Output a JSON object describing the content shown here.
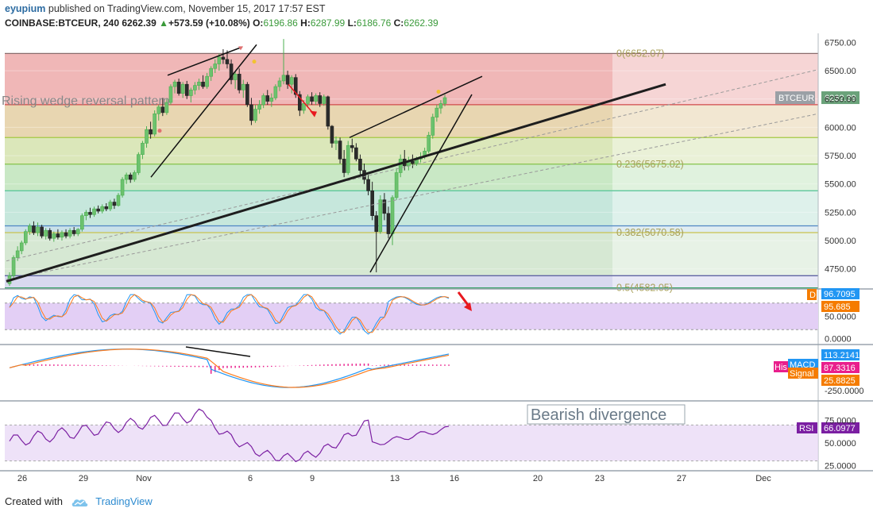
{
  "header": {
    "author": "eyupium",
    "published": "published on TradingView.com, November 15, 2017 17:57 EST",
    "symbol": "COINBASE:BTCEUR, 240",
    "last": "6262.39",
    "change_arrow": "▲",
    "change": "+573.59 (+10.08%)",
    "o_label": "O:",
    "o_value": "6196.86",
    "h_label": "H:",
    "h_value": "6287.99",
    "l_label": "L:",
    "l_value": "6186.76",
    "c_label": "C:",
    "c_value": "6262.39"
  },
  "footer": {
    "created_with": "Created with",
    "brand": "TradingView",
    "brand_icon": "tradingview-cloud-icon"
  },
  "colors": {
    "grid": "#e9eef2",
    "candle_up": "#4caf50",
    "candle_down": "#222222",
    "trend": "#000000",
    "fib_red": "#e05a5a",
    "rsi_zone": "#e8d8f6",
    "macd": "#2196f3",
    "signal": "#ff7b1c",
    "hist": "#e91e8c",
    "rsi": "#7b1fa2",
    "red_arrow": "#e8181f"
  },
  "chart_data": {
    "type": "candlestick",
    "title": "",
    "x_ticks": [
      "26",
      "29",
      "Nov",
      "6",
      "9",
      "13",
      "16",
      "20",
      "23",
      "27",
      "Dec"
    ],
    "y_ticks": [
      "6750.00",
      "6500.00",
      "6250.00",
      "6000.00",
      "5750.00",
      "5500.00",
      "5250.00",
      "5000.00",
      "4750.00"
    ],
    "ylim": [
      4580,
      6830
    ],
    "price_label": {
      "name": "BTCEUR",
      "value": "6262.39"
    },
    "annotation": "Rising wedge reversal pattern",
    "fib_levels": [
      {
        "label": "0(6652.07)",
        "value": 6652.07
      },
      {
        "label": "0.236(5675.02)",
        "value": 5675.02
      },
      {
        "label": "0.382(5070.58)",
        "value": 5070.58
      },
      {
        "label": "0.5(4582.05)",
        "value": 4582.05
      }
    ],
    "fib_zone_bounds": [
      6652.07,
      6200,
      5910,
      5675.02,
      5440,
      5130,
      5070.58,
      4690,
      4582.05
    ],
    "candles": [
      {
        "x": "Oct 25 08:00",
        "o": 4620,
        "h": 4720,
        "l": 4600,
        "c": 4690
      },
      {
        "x": "Oct 25 12:00",
        "o": 4690,
        "h": 4870,
        "l": 4660,
        "c": 4850
      },
      {
        "x": "Oct 25 16:00",
        "o": 4850,
        "h": 4950,
        "l": 4820,
        "c": 4910
      },
      {
        "x": "Oct 25 20:00",
        "o": 4910,
        "h": 5000,
        "l": 4880,
        "c": 4980
      },
      {
        "x": "Oct 26 00:00",
        "o": 4980,
        "h": 5100,
        "l": 4960,
        "c": 5080
      },
      {
        "x": "Oct 26 04:00",
        "o": 5080,
        "h": 5150,
        "l": 5050,
        "c": 5130
      },
      {
        "x": "Oct 26 08:00",
        "o": 5130,
        "h": 5170,
        "l": 5050,
        "c": 5070
      },
      {
        "x": "Oct 26 12:00",
        "o": 5070,
        "h": 5160,
        "l": 5040,
        "c": 5120
      },
      {
        "x": "Oct 26 16:00",
        "o": 5120,
        "h": 5140,
        "l": 5020,
        "c": 5040
      },
      {
        "x": "Oct 26 20:00",
        "o": 5040,
        "h": 5110,
        "l": 5010,
        "c": 5090
      },
      {
        "x": "Oct 27 00:00",
        "o": 5090,
        "h": 5110,
        "l": 5000,
        "c": 5020
      },
      {
        "x": "Oct 27 04:00",
        "o": 5020,
        "h": 5080,
        "l": 4990,
        "c": 5060
      },
      {
        "x": "Oct 27 08:00",
        "o": 5060,
        "h": 5100,
        "l": 5010,
        "c": 5030
      },
      {
        "x": "Oct 27 12:00",
        "o": 5030,
        "h": 5090,
        "l": 5000,
        "c": 5070
      },
      {
        "x": "Oct 27 16:00",
        "o": 5070,
        "h": 5100,
        "l": 5020,
        "c": 5040
      },
      {
        "x": "Oct 27 20:00",
        "o": 5040,
        "h": 5110,
        "l": 5020,
        "c": 5090
      },
      {
        "x": "Oct 28 00:00",
        "o": 5090,
        "h": 5120,
        "l": 5040,
        "c": 5060
      },
      {
        "x": "Oct 28 04:00",
        "o": 5060,
        "h": 5110,
        "l": 5040,
        "c": 5100
      },
      {
        "x": "Oct 28 08:00",
        "o": 5100,
        "h": 5240,
        "l": 5080,
        "c": 5220
      },
      {
        "x": "Oct 28 12:00",
        "o": 5220,
        "h": 5270,
        "l": 5180,
        "c": 5250
      },
      {
        "x": "Oct 28 16:00",
        "o": 5250,
        "h": 5290,
        "l": 5200,
        "c": 5230
      },
      {
        "x": "Oct 28 20:00",
        "o": 5230,
        "h": 5300,
        "l": 5210,
        "c": 5280
      },
      {
        "x": "Oct 29 00:00",
        "o": 5280,
        "h": 5310,
        "l": 5240,
        "c": 5260
      },
      {
        "x": "Oct 29 04:00",
        "o": 5260,
        "h": 5320,
        "l": 5240,
        "c": 5300
      },
      {
        "x": "Oct 29 08:00",
        "o": 5300,
        "h": 5330,
        "l": 5260,
        "c": 5280
      },
      {
        "x": "Oct 29 12:00",
        "o": 5280,
        "h": 5360,
        "l": 5260,
        "c": 5340
      },
      {
        "x": "Oct 29 16:00",
        "o": 5340,
        "h": 5370,
        "l": 5280,
        "c": 5310
      },
      {
        "x": "Oct 29 20:00",
        "o": 5310,
        "h": 5420,
        "l": 5300,
        "c": 5400
      },
      {
        "x": "Oct 30 00:00",
        "o": 5400,
        "h": 5560,
        "l": 5380,
        "c": 5540
      },
      {
        "x": "Oct 30 04:00",
        "o": 5540,
        "h": 5600,
        "l": 5500,
        "c": 5580
      },
      {
        "x": "Oct 30 08:00",
        "o": 5580,
        "h": 5600,
        "l": 5510,
        "c": 5540
      },
      {
        "x": "Oct 30 12:00",
        "o": 5540,
        "h": 5620,
        "l": 5520,
        "c": 5600
      },
      {
        "x": "Oct 30 16:00",
        "o": 5600,
        "h": 5780,
        "l": 5580,
        "c": 5760
      },
      {
        "x": "Oct 30 20:00",
        "o": 5760,
        "h": 5880,
        "l": 5720,
        "c": 5860
      },
      {
        "x": "Oct 31 00:00",
        "o": 5860,
        "h": 6010,
        "l": 5820,
        "c": 5980
      },
      {
        "x": "Oct 31 04:00",
        "o": 5980,
        "h": 6050,
        "l": 5900,
        "c": 5940
      },
      {
        "x": "Oct 31 08:00",
        "o": 5940,
        "h": 6150,
        "l": 5920,
        "c": 6120
      },
      {
        "x": "Oct 31 12:00",
        "o": 6120,
        "h": 6200,
        "l": 6060,
        "c": 6180
      },
      {
        "x": "Oct 31 16:00",
        "o": 6180,
        "h": 6260,
        "l": 6100,
        "c": 6130
      },
      {
        "x": "Oct 31 20:00",
        "o": 6130,
        "h": 6250,
        "l": 6110,
        "c": 6220
      },
      {
        "x": "Nov 1 00:00",
        "o": 6220,
        "h": 6380,
        "l": 6200,
        "c": 6360
      },
      {
        "x": "Nov 1 04:00",
        "o": 6360,
        "h": 6420,
        "l": 6300,
        "c": 6400
      },
      {
        "x": "Nov 1 08:00",
        "o": 6400,
        "h": 6430,
        "l": 6280,
        "c": 6300
      },
      {
        "x": "Nov 1 12:00",
        "o": 6300,
        "h": 6400,
        "l": 6260,
        "c": 6380
      },
      {
        "x": "Nov 1 16:00",
        "o": 6380,
        "h": 6410,
        "l": 6250,
        "c": 6280
      },
      {
        "x": "Nov 1 20:00",
        "o": 6280,
        "h": 6350,
        "l": 6220,
        "c": 6330
      },
      {
        "x": "Nov 2 00:00",
        "o": 6330,
        "h": 6400,
        "l": 6290,
        "c": 6370
      },
      {
        "x": "Nov 2 04:00",
        "o": 6370,
        "h": 6430,
        "l": 6330,
        "c": 6400
      },
      {
        "x": "Nov 2 08:00",
        "o": 6400,
        "h": 6460,
        "l": 6340,
        "c": 6360
      },
      {
        "x": "Nov 2 12:00",
        "o": 6360,
        "h": 6480,
        "l": 6340,
        "c": 6450
      },
      {
        "x": "Nov 2 16:00",
        "o": 6450,
        "h": 6540,
        "l": 6410,
        "c": 6520
      },
      {
        "x": "Nov 2 20:00",
        "o": 6520,
        "h": 6600,
        "l": 6480,
        "c": 6560
      },
      {
        "x": "Nov 3 00:00",
        "o": 6560,
        "h": 6650,
        "l": 6500,
        "c": 6620
      },
      {
        "x": "Nov 3 04:00",
        "o": 6620,
        "h": 6690,
        "l": 6560,
        "c": 6600
      },
      {
        "x": "Nov 3 08:00",
        "o": 6600,
        "h": 6680,
        "l": 6520,
        "c": 6560
      },
      {
        "x": "Nov 3 12:00",
        "o": 6560,
        "h": 6600,
        "l": 6380,
        "c": 6420
      },
      {
        "x": "Nov 3 16:00",
        "o": 6420,
        "h": 6500,
        "l": 6340,
        "c": 6470
      },
      {
        "x": "Nov 3 20:00",
        "o": 6470,
        "h": 6520,
        "l": 6300,
        "c": 6330
      },
      {
        "x": "Nov 4 00:00",
        "o": 6330,
        "h": 6420,
        "l": 6260,
        "c": 6380
      },
      {
        "x": "Nov 4 04:00",
        "o": 6380,
        "h": 6400,
        "l": 6180,
        "c": 6200
      },
      {
        "x": "Nov 4 08:00",
        "o": 6200,
        "h": 6260,
        "l": 6020,
        "c": 6060
      },
      {
        "x": "Nov 4 12:00",
        "o": 6060,
        "h": 6200,
        "l": 6040,
        "c": 6160
      },
      {
        "x": "Nov 4 16:00",
        "o": 6160,
        "h": 6240,
        "l": 6120,
        "c": 6200
      },
      {
        "x": "Nov 4 20:00",
        "o": 6200,
        "h": 6300,
        "l": 6170,
        "c": 6280
      },
      {
        "x": "Nov 5 00:00",
        "o": 6280,
        "h": 6330,
        "l": 6200,
        "c": 6230
      },
      {
        "x": "Nov 5 04:00",
        "o": 6230,
        "h": 6300,
        "l": 6180,
        "c": 6260
      },
      {
        "x": "Nov 5 08:00",
        "o": 6260,
        "h": 6380,
        "l": 6240,
        "c": 6360
      },
      {
        "x": "Nov 5 12:00",
        "o": 6360,
        "h": 6440,
        "l": 6320,
        "c": 6410
      },
      {
        "x": "Nov 5 16:00",
        "o": 6410,
        "h": 6780,
        "l": 6380,
        "c": 6460
      },
      {
        "x": "Nov 5 20:00",
        "o": 6460,
        "h": 6500,
        "l": 6340,
        "c": 6380
      },
      {
        "x": "Nov 6 00:00",
        "o": 6380,
        "h": 6460,
        "l": 6300,
        "c": 6440
      },
      {
        "x": "Nov 6 04:00",
        "o": 6440,
        "h": 6470,
        "l": 6260,
        "c": 6290
      },
      {
        "x": "Nov 6 08:00",
        "o": 6290,
        "h": 6320,
        "l": 6100,
        "c": 6150
      },
      {
        "x": "Nov 6 12:00",
        "o": 6150,
        "h": 6240,
        "l": 6120,
        "c": 6210
      },
      {
        "x": "Nov 6 16:00",
        "o": 6210,
        "h": 6290,
        "l": 6180,
        "c": 6270
      },
      {
        "x": "Nov 6 20:00",
        "o": 6270,
        "h": 6310,
        "l": 6200,
        "c": 6230
      },
      {
        "x": "Nov 7 00:00",
        "o": 6230,
        "h": 6300,
        "l": 6200,
        "c": 6280
      },
      {
        "x": "Nov 7 04:00",
        "o": 6280,
        "h": 6310,
        "l": 6180,
        "c": 6210
      },
      {
        "x": "Nov 7 08:00",
        "o": 6210,
        "h": 6290,
        "l": 6190,
        "c": 6270
      },
      {
        "x": "Nov 7 12:00",
        "o": 6270,
        "h": 6280,
        "l": 5980,
        "c": 6010
      },
      {
        "x": "Nov 7 16:00",
        "o": 6010,
        "h": 6020,
        "l": 5820,
        "c": 5860
      },
      {
        "x": "Nov 7 20:00",
        "o": 5860,
        "h": 5920,
        "l": 5800,
        "c": 5880
      },
      {
        "x": "Nov 8 00:00",
        "o": 5880,
        "h": 5910,
        "l": 5680,
        "c": 5720
      },
      {
        "x": "Nov 8 04:00",
        "o": 5720,
        "h": 5800,
        "l": 5560,
        "c": 5600
      },
      {
        "x": "Nov 8 08:00",
        "o": 5600,
        "h": 5880,
        "l": 5580,
        "c": 5840
      },
      {
        "x": "Nov 8 12:00",
        "o": 5840,
        "h": 5900,
        "l": 5780,
        "c": 5820
      },
      {
        "x": "Nov 8 16:00",
        "o": 5820,
        "h": 5860,
        "l": 5700,
        "c": 5720
      },
      {
        "x": "Nov 8 20:00",
        "o": 5720,
        "h": 5760,
        "l": 5580,
        "c": 5620
      },
      {
        "x": "Nov 9 00:00",
        "o": 5620,
        "h": 5680,
        "l": 5500,
        "c": 5540
      },
      {
        "x": "Nov 9 04:00",
        "o": 5540,
        "h": 5580,
        "l": 5400,
        "c": 5440
      },
      {
        "x": "Nov 9 08:00",
        "o": 5440,
        "h": 5520,
        "l": 5180,
        "c": 5220
      },
      {
        "x": "Nov 9 12:00",
        "o": 5220,
        "h": 5260,
        "l": 4720,
        "c": 5080
      },
      {
        "x": "Nov 9 16:00",
        "o": 5080,
        "h": 5400,
        "l": 5060,
        "c": 5360
      },
      {
        "x": "Nov 9 20:00",
        "o": 5360,
        "h": 5420,
        "l": 5180,
        "c": 5240
      },
      {
        "x": "Nov 10 00:00",
        "o": 5240,
        "h": 5300,
        "l": 5020,
        "c": 5060
      },
      {
        "x": "Nov 10 04:00",
        "o": 5060,
        "h": 5400,
        "l": 4960,
        "c": 5380
      },
      {
        "x": "Nov 10 08:00",
        "o": 5380,
        "h": 5640,
        "l": 5360,
        "c": 5600
      },
      {
        "x": "Nov 10 12:00",
        "o": 5600,
        "h": 5760,
        "l": 5560,
        "c": 5720
      },
      {
        "x": "Nov 10 16:00",
        "o": 5720,
        "h": 5800,
        "l": 5620,
        "c": 5660
      },
      {
        "x": "Nov 10 20:00",
        "o": 5660,
        "h": 5740,
        "l": 5620,
        "c": 5700
      },
      {
        "x": "Nov 11 00:00",
        "o": 5700,
        "h": 5760,
        "l": 5640,
        "c": 5680
      },
      {
        "x": "Nov 11 04:00",
        "o": 5680,
        "h": 5740,
        "l": 5660,
        "c": 5720
      },
      {
        "x": "Nov 11 08:00",
        "o": 5720,
        "h": 5780,
        "l": 5690,
        "c": 5740
      },
      {
        "x": "Nov 11 12:00",
        "o": 5740,
        "h": 5820,
        "l": 5720,
        "c": 5790
      },
      {
        "x": "Nov 11 16:00",
        "o": 5790,
        "h": 5960,
        "l": 5770,
        "c": 5930
      },
      {
        "x": "Nov 11 20:00",
        "o": 5930,
        "h": 6120,
        "l": 5900,
        "c": 6090
      },
      {
        "x": "Nov 12 00:00",
        "o": 6090,
        "h": 6200,
        "l": 6050,
        "c": 6170
      },
      {
        "x": "Nov 12 04:00",
        "o": 6170,
        "h": 6240,
        "l": 6120,
        "c": 6210
      },
      {
        "x": "Nov 12 08:00",
        "o": 6210,
        "h": 6288,
        "l": 6186,
        "c": 6262
      }
    ],
    "rsi_stoch": {
      "name": "D",
      "values": [
        96.7095,
        95.685
      ],
      "y_ticks": [
        "50.0000",
        "0.0000"
      ]
    },
    "macd": {
      "series": [
        {
          "name": "Histogram",
          "value": "87.3316"
        },
        {
          "name": "MACD",
          "value": "113.2141"
        },
        {
          "name": "Signal",
          "value": "25.8825"
        }
      ],
      "y_ticks": [
        "-250.0000"
      ]
    },
    "rsi": {
      "name": "RSI",
      "value": "66.0977",
      "y_ticks": [
        "75.0000",
        "50.0000",
        "25.0000"
      ]
    },
    "annotations": [
      "Rising wedge reversal pattern",
      "Bearish divergence"
    ]
  }
}
